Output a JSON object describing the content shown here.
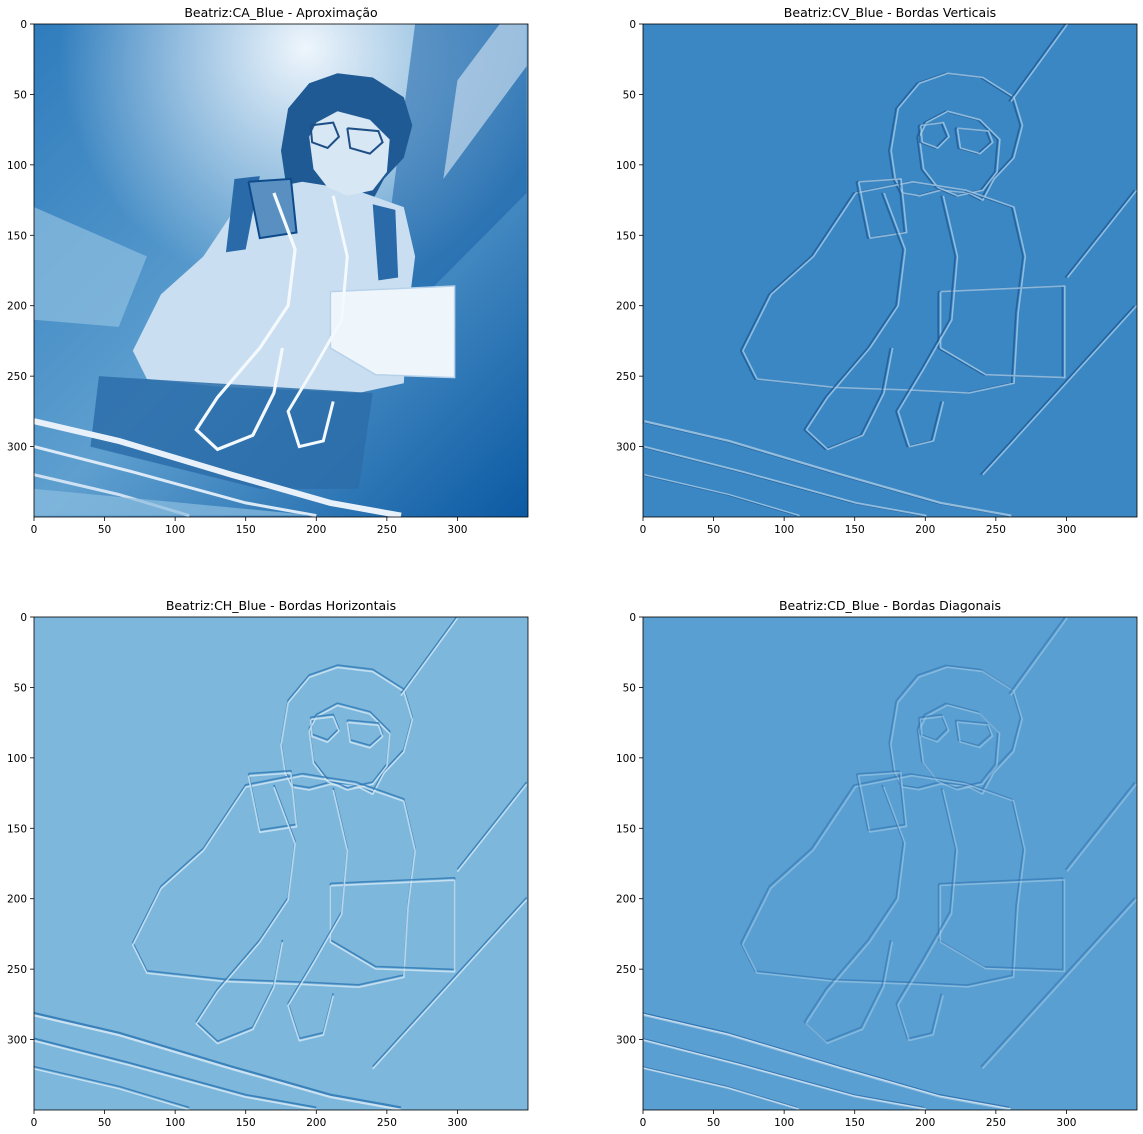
{
  "figure": {
    "background": "#ffffff",
    "colormap": "Blues"
  },
  "chart_data": [
    {
      "type": "image",
      "title": "Beatriz:CA_Blue - Aproximação",
      "x_ticks": [
        0,
        50,
        100,
        150,
        200,
        250,
        300
      ],
      "y_ticks": [
        0,
        50,
        100,
        150,
        200,
        250,
        300
      ],
      "xlim": [
        0,
        349
      ],
      "ylim": [
        349,
        0
      ],
      "content": "approximation coefficients",
      "colors": {
        "light": "#e6f0fa",
        "mid": "#6aaed6",
        "dark": "#08519c"
      }
    },
    {
      "type": "image",
      "title": "Beatriz:CV_Blue - Bordas Verticais",
      "x_ticks": [
        0,
        50,
        100,
        150,
        200,
        250,
        300
      ],
      "y_ticks": [
        0,
        50,
        100,
        150,
        200,
        250,
        300
      ],
      "xlim": [
        0,
        349
      ],
      "ylim": [
        349,
        0
      ],
      "content": "vertical detail coefficients",
      "colors": {
        "base": "#3b87c3",
        "edge_light": "#a6cbe6",
        "edge_dark": "#1e5a96"
      }
    },
    {
      "type": "image",
      "title": "Beatriz:CH_Blue - Bordas Horizontais",
      "x_ticks": [
        0,
        50,
        100,
        150,
        200,
        250,
        300
      ],
      "y_ticks": [
        0,
        50,
        100,
        150,
        200,
        250,
        300
      ],
      "xlim": [
        0,
        349
      ],
      "ylim": [
        349,
        0
      ],
      "content": "horizontal detail coefficients",
      "colors": {
        "base": "#7db8dc",
        "edge_light": "#d6e8f5",
        "edge_dark": "#2f78b5"
      }
    },
    {
      "type": "image",
      "title": "Beatriz:CD_Blue - Bordas Diagonais",
      "x_ticks": [
        0,
        50,
        100,
        150,
        200,
        250,
        300
      ],
      "y_ticks": [
        0,
        50,
        100,
        150,
        200,
        250,
        300
      ],
      "xlim": [
        0,
        349
      ],
      "ylim": [
        349,
        0
      ],
      "content": "diagonal detail coefficients",
      "colors": {
        "base": "#5a9fd1",
        "edge_light": "#a9cde8",
        "edge_dark": "#2c6fae"
      }
    }
  ]
}
